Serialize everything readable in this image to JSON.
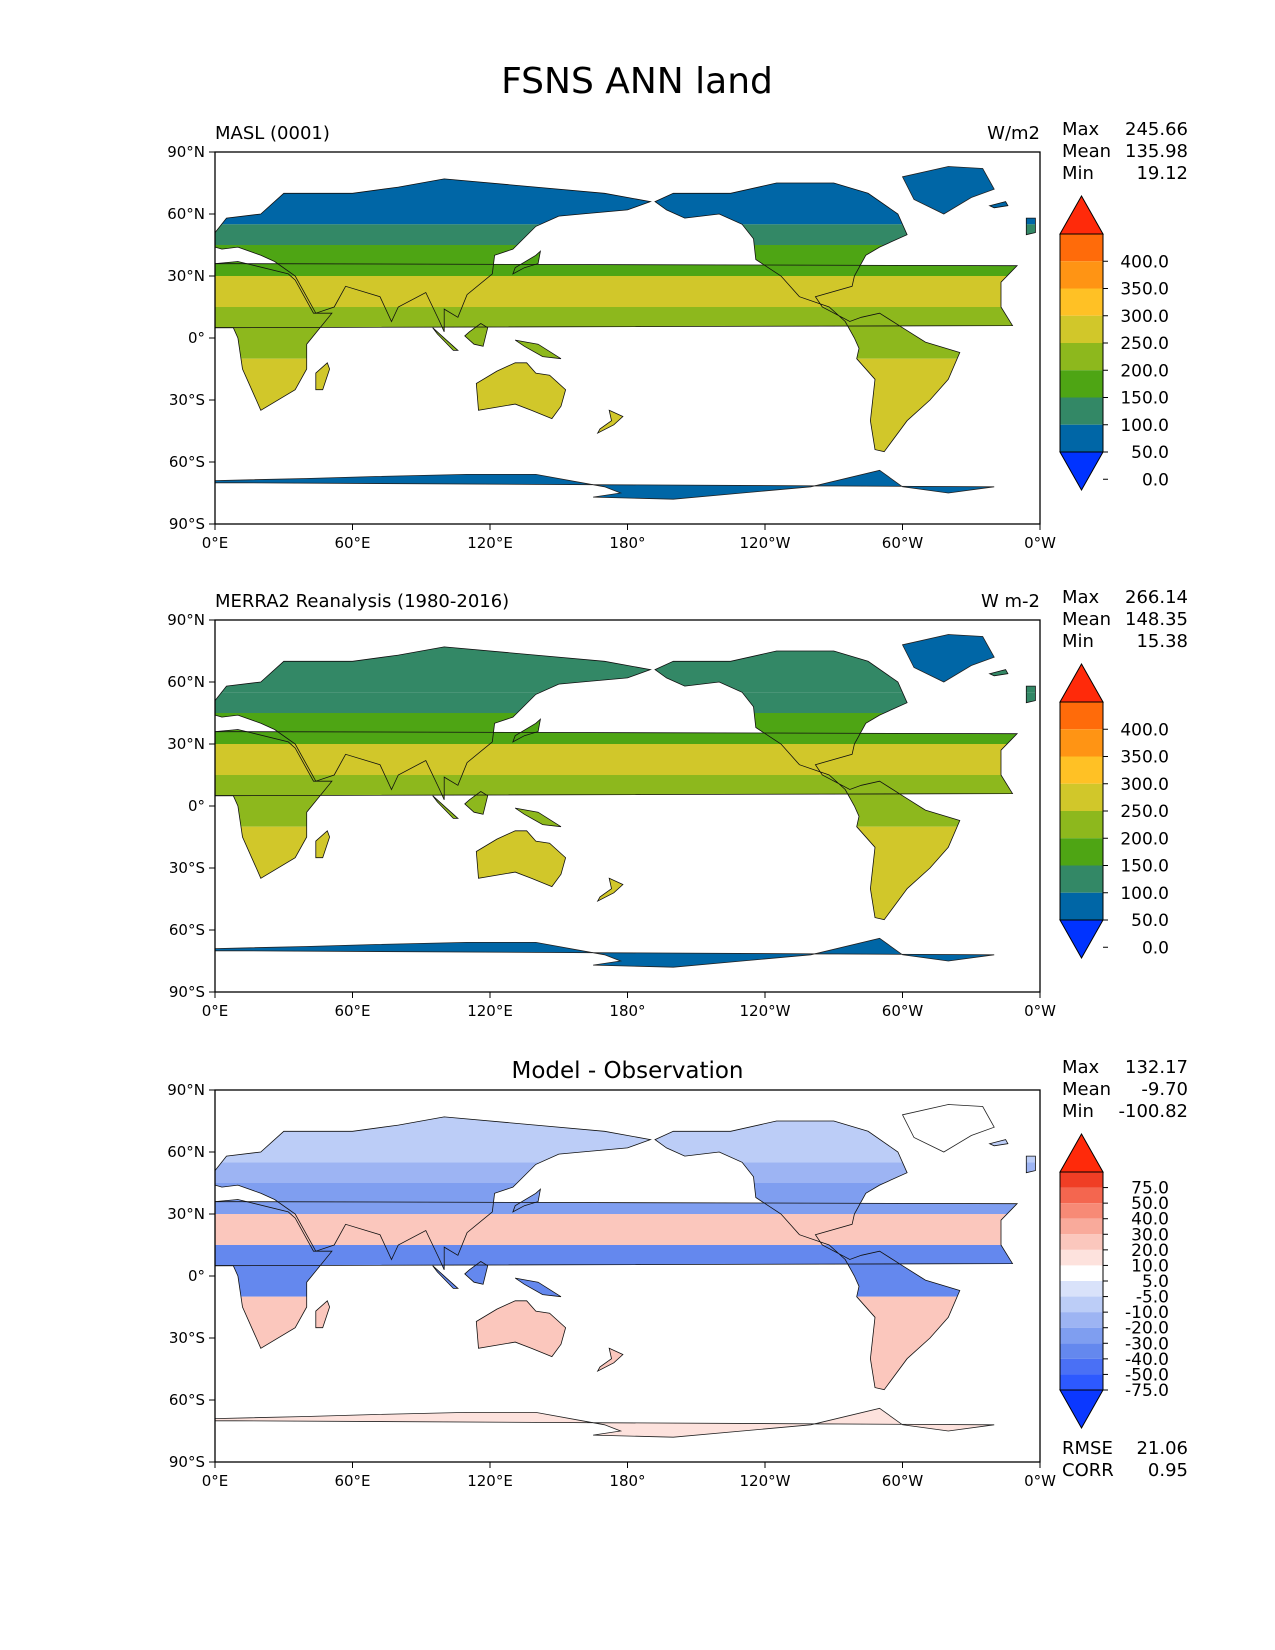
{
  "figure_title": "FSNS ANN land",
  "xtick_labels": [
    "0°E",
    "60°E",
    "120°E",
    "180°",
    "120°W",
    "60°W",
    "0°W"
  ],
  "ytick_labels": [
    "90°N",
    "60°N",
    "30°N",
    "0°",
    "30°S",
    "60°S",
    "90°S"
  ],
  "colors": {
    "fsns_levels": [
      "#0033ff",
      "#0066a6",
      "#338866",
      "#4ea514",
      "#8db81d",
      "#d1c72a",
      "#ffc125",
      "#ff9414",
      "#ff6b0a",
      "#ff2a0a"
    ],
    "diff_levels": [
      "#0b38ff",
      "#2d59ff",
      "#4a70f5",
      "#6488ee",
      "#7f9ef0",
      "#9db4f3",
      "#bccdf7",
      "#d9e2fa",
      "#ffffff",
      "#fde2dd",
      "#fbc7bd",
      "#f9aa9b",
      "#f78a76",
      "#f4664f",
      "#f03e25",
      "#ff2a0a"
    ],
    "ocean": "#ffffff"
  },
  "panels": [
    {
      "left_title": "MASL (0001)",
      "center_title": "",
      "units": "W/m2",
      "stats": [
        {
          "label": "Max",
          "value": "245.66"
        },
        {
          "label": "Mean",
          "value": "135.98"
        },
        {
          "label": "Min",
          "value": "19.12"
        }
      ],
      "colorbar_ticks": [
        "400.0",
        "350.0",
        "300.0",
        "250.0",
        "200.0",
        "150.0",
        "100.0",
        "50.0",
        "0.0"
      ],
      "fills": {
        "arctic": "#0066a6",
        "boreal": "#338866",
        "mid": "#4ea514",
        "trop": "#8db81d",
        "dry": "#d1c72a",
        "antarctica": "#0066a6",
        "greenland": "#0066a6"
      },
      "metrics": []
    },
    {
      "left_title": "MERRA2 Reanalysis (1980-2016)",
      "center_title": "",
      "units": "W m-2",
      "stats": [
        {
          "label": "Max",
          "value": "266.14"
        },
        {
          "label": "Mean",
          "value": "148.35"
        },
        {
          "label": "Min",
          "value": "15.38"
        }
      ],
      "colorbar_ticks": [
        "400.0",
        "350.0",
        "300.0",
        "250.0",
        "200.0",
        "150.0",
        "100.0",
        "50.0",
        "0.0"
      ],
      "fills": {
        "arctic": "#338866",
        "boreal": "#338866",
        "mid": "#4ea514",
        "trop": "#8db81d",
        "dry": "#d1c72a",
        "antarctica": "#0066a6",
        "greenland": "#0066a6"
      },
      "metrics": []
    },
    {
      "left_title": "",
      "center_title": "Model - Observation",
      "units": "",
      "stats": [
        {
          "label": "Max",
          "value": "132.17"
        },
        {
          "label": "Mean",
          "value": "-9.70"
        },
        {
          "label": "Min",
          "value": "-100.82"
        }
      ],
      "colorbar_ticks": [
        "75.0",
        "50.0",
        "40.0",
        "30.0",
        "20.0",
        "10.0",
        "5.0",
        "-5.0",
        "-10.0",
        "-20.0",
        "-30.0",
        "-40.0",
        "-50.0",
        "-75.0"
      ],
      "fills": {
        "arctic": "#bccdf7",
        "boreal": "#9db4f3",
        "mid": "#7f9ef0",
        "trop": "#6488ee",
        "dry": "#fbc7bd",
        "antarctica": "#fde2dd",
        "greenland": "#ffffff"
      },
      "metrics": [
        {
          "label": "RMSE",
          "value": "21.06"
        },
        {
          "label": "CORR",
          "value": "0.95"
        }
      ]
    }
  ]
}
